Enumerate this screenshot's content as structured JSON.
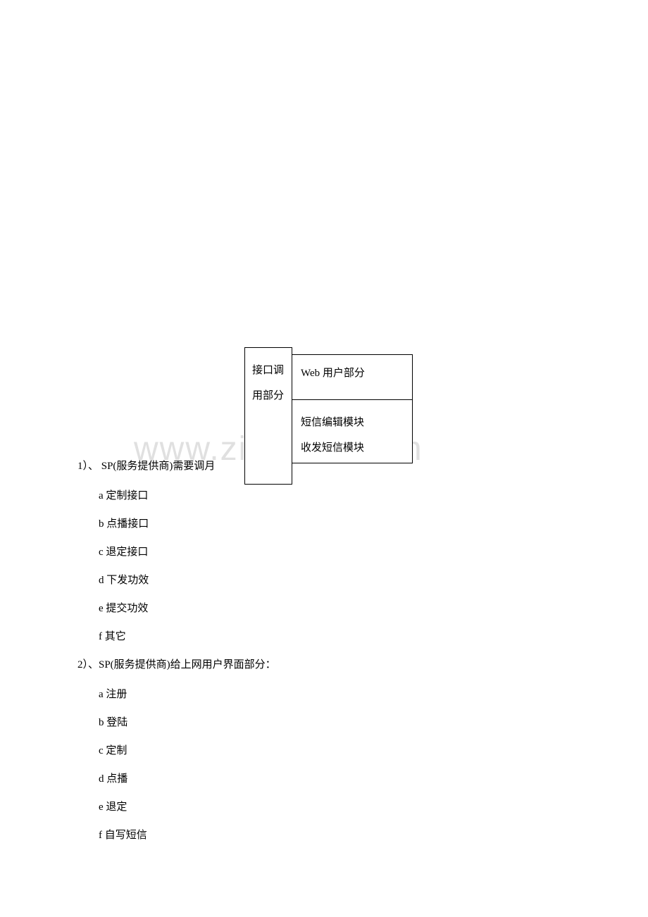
{
  "watermark": "www.zixin.com.cn",
  "diagram": {
    "left_box": "接口调用部分",
    "right_top": "Web 用户部分",
    "right_bottom_line1": "短信编辑模块",
    "right_bottom_line2": "收发短信模块"
  },
  "sections": [
    {
      "heading": "1）、 SP(服务提供商)需要调月",
      "items": [
        "a 定制接口",
        "b 点播接口",
        "c 退定接口",
        "d 下发功效",
        "e 提交功效",
        "f 其它"
      ]
    },
    {
      "heading": "2）、SP(服务提供商)给上网用户界面部分：",
      "items": [
        "a 注册",
        "b 登陆",
        "c 定制",
        "d 点播",
        "e 退定",
        "f 自写短信"
      ]
    }
  ],
  "colors": {
    "background": "#ffffff",
    "text": "#000000",
    "border": "#000000",
    "watermark": "#e0e0e0"
  },
  "fonts": {
    "body_size": 15,
    "watermark_size": 48
  }
}
